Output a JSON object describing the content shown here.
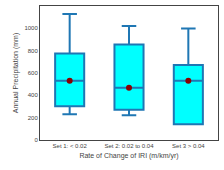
{
  "chart_data": {
    "type": "box",
    "xlabel": "Rate of Change of IRI (m/km/yr)",
    "ylabel": "Annual Precipitation (mm)",
    "categories": [
      "Set 1: < 0.02",
      "Set 2: 0.02 to 0.04",
      "Set 3 > 0.04"
    ],
    "series": [
      {
        "type": "box",
        "color": "#00FFFF",
        "q1": [
          302,
          271,
          142
        ],
        "median": [
          530,
          469,
          530
        ],
        "q3": [
          774,
          856,
          672
        ],
        "whislo": [
          230,
          222,
          141
        ],
        "whishi": [
          1128,
          1022,
          999
        ]
      },
      {
        "type": "scatter",
        "marker": "circle",
        "color": "#8B0000",
        "values": [
          530,
          469,
          530
        ]
      }
    ],
    "ylim": [
      0,
      1200
    ],
    "yticks": [
      0,
      200,
      400,
      600,
      800,
      1000
    ],
    "grid": false
  }
}
